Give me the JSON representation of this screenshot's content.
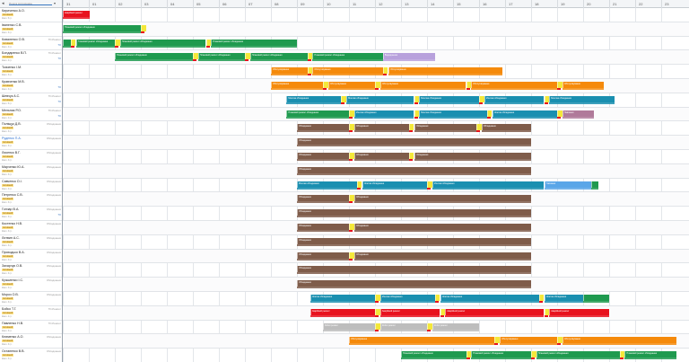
{
  "header": {
    "collapse_icon": "chevron-left-icon",
    "search_placeholder": "Пошук сотрудника",
    "dates": [
      "31",
      "01",
      "02",
      "03",
      "04",
      "05",
      "06",
      "07",
      "08",
      "09",
      "10",
      "11",
      "12",
      "13",
      "14",
      "15",
      "16",
      "17",
      "18",
      "19",
      "20",
      "21",
      "22",
      "23"
    ]
  },
  "colors": {
    "green": "#1f9a4f",
    "teal": "#1a8fb0",
    "orange": "#f58a0b",
    "brown": "#7f5c4a",
    "red": "#e8121e",
    "yellow": "#f4e83a",
    "lavender": "#b8a1dc",
    "grey": "#bdbdbd",
    "mauve": "#b07a9a",
    "blue": "#5aa6e8"
  },
  "rows": [
    {
      "name": "Кириченко А.О.",
      "status": "Активний",
      "tag": "",
      "sub": "Квал. 5 гр.",
      "link": false,
      "pin": ""
    },
    {
      "name": "Іваненко С.В.",
      "status": "Активний",
      "tag": "",
      "sub": "Квал. 3 гр.",
      "link": false,
      "pin": ""
    },
    {
      "name": "Коваленко О.В.",
      "status": "Активний",
      "tag": "ТО-Ремонт",
      "sub": "Квал. 4 гр.",
      "link": false,
      "pin": "ТО"
    },
    {
      "name": "Бондаренко В.П.",
      "status": "Активний",
      "tag": "ТО-Ремонт",
      "sub": "Квал. 4 гр.",
      "link": false,
      "pin": "ТО"
    },
    {
      "name": "Ткаченко І.М.",
      "status": "Активний",
      "tag": "",
      "sub": "Квал. 3 гр.",
      "link": false,
      "pin": ""
    },
    {
      "name": "Кравченко М.В.",
      "status": "Активний",
      "tag": "",
      "sub": "Квал. 3 гр.",
      "link": false,
      "pin": "ТО"
    },
    {
      "name": "Шевчук А.С.",
      "status": "Активний",
      "tag": "ТО-Ремонт",
      "sub": "Квал. 5 гр.",
      "link": false,
      "pin": "ТО"
    },
    {
      "name": "Мельник Р.О.",
      "status": "Активний",
      "tag": "ТО-Ремонт",
      "sub": "Квал. 4 гр.",
      "link": false,
      "pin": "ТО"
    },
    {
      "name": "Поліщук Д.В.",
      "status": "Активний",
      "tag": "Обладнання",
      "sub": "Квал. 3 гр.",
      "link": false,
      "pin": ""
    },
    {
      "name": "Руденко П.А.",
      "status": "Активний",
      "tag": "Обладнання",
      "sub": "Квал. 3 гр.",
      "link": true,
      "pin": ""
    },
    {
      "name": "Лисенко В.Г.",
      "status": "Активний",
      "tag": "Обладнання",
      "sub": "Квал. 3 гр.",
      "link": false,
      "pin": ""
    },
    {
      "name": "Марченко Ю.А.",
      "status": "Активний",
      "tag": "Обладнання",
      "sub": "Квал. 3 гр.",
      "link": false,
      "pin": ""
    },
    {
      "name": "Савченко О.І.",
      "status": "Активний",
      "tag": "Обладнання",
      "sub": "Квал. 4 гр.",
      "link": false,
      "pin": ""
    },
    {
      "name": "Петренко С.В.",
      "status": "Активний",
      "tag": "Обладнання",
      "sub": "Квал. 3 гр.",
      "link": false,
      "pin": ""
    },
    {
      "name": "Гончар В.А.",
      "status": "Активний",
      "tag": "Обладнання",
      "sub": "Квал. 3 гр.",
      "link": false,
      "pin": "ТО"
    },
    {
      "name": "Костенко Н.В.",
      "status": "Активний",
      "tag": "Обладнання",
      "sub": "Квал. 3 гр.",
      "link": false,
      "pin": ""
    },
    {
      "name": "Литвин А.С.",
      "status": "Активний",
      "tag": "Обладнання",
      "sub": "Квал. 3 гр.",
      "link": false,
      "pin": ""
    },
    {
      "name": "Приходько В.А.",
      "status": "Активний",
      "tag": "Обладнання",
      "sub": "Квал. 3 гр.",
      "link": false,
      "pin": ""
    },
    {
      "name": "Захарчук О.В.",
      "status": "Активний",
      "tag": "Обладнання",
      "sub": "Квал. 3 гр.",
      "link": false,
      "pin": ""
    },
    {
      "name": "Кузьменко І.С.",
      "status": "Активний",
      "tag": "Обладнання",
      "sub": "Квал. 3 гр.",
      "link": false,
      "pin": ""
    },
    {
      "name": "Мороз О.В.",
      "status": "Активний",
      "tag": "Обладнання",
      "sub": "Квал. 3 гр.",
      "link": false,
      "pin": ""
    },
    {
      "name": "Бойко Т.Г.",
      "status": "Активний",
      "tag": "ТО-Ремонт",
      "sub": "Квал. 4 гр.",
      "link": false,
      "pin": ""
    },
    {
      "name": "Павленко Н.В.",
      "status": "Активний",
      "tag": "ТО-Ремонт",
      "sub": "Квал. 3 гр.",
      "link": false,
      "pin": ""
    },
    {
      "name": "Клименко А.О.",
      "status": "Активний",
      "tag": "Обладнання",
      "sub": "Квал. 3 гр.",
      "link": false,
      "pin": ""
    },
    {
      "name": "Остапенко В.В.",
      "status": "Активний",
      "tag": "Обладнання",
      "sub": "Квал. 3 гр.",
      "link": false,
      "pin": ""
    }
  ],
  "tasks": [
    {
      "row": 0,
      "from": 0.0,
      "to": 1.05,
      "color": "red",
      "label": "Аварійний ремонт"
    },
    {
      "row": 1,
      "from": 0.0,
      "to": 3.0,
      "color": "green",
      "label": "Плановий ремонт обладнання"
    },
    {
      "row": 1,
      "from": 3.0,
      "to": 3.2,
      "color": "yellow",
      "label": ""
    },
    {
      "row": 2,
      "from": 0.0,
      "to": 0.3,
      "color": "green",
      "label": ""
    },
    {
      "row": 2,
      "from": 0.3,
      "to": 0.5,
      "color": "yellow",
      "label": ""
    },
    {
      "row": 2,
      "from": 0.5,
      "to": 2.0,
      "color": "green",
      "label": "Плановий ремонт обладнання"
    },
    {
      "row": 2,
      "from": 2.0,
      "to": 2.2,
      "color": "yellow",
      "label": ""
    },
    {
      "row": 2,
      "from": 2.2,
      "to": 5.5,
      "color": "green",
      "label": "Плановий ремонт обладнання"
    },
    {
      "row": 2,
      "from": 5.5,
      "to": 5.7,
      "color": "yellow",
      "label": ""
    },
    {
      "row": 2,
      "from": 5.7,
      "to": 9.0,
      "color": "green",
      "label": "Плановий ремонт обладнання"
    },
    {
      "row": 3,
      "from": 2.0,
      "to": 5.0,
      "color": "green",
      "label": "Плановий ремонт обладнання"
    },
    {
      "row": 3,
      "from": 5.0,
      "to": 5.2,
      "color": "yellow",
      "label": ""
    },
    {
      "row": 3,
      "from": 5.2,
      "to": 7.0,
      "color": "green",
      "label": "Плановий ремонт обладнання"
    },
    {
      "row": 3,
      "from": 7.0,
      "to": 7.2,
      "color": "yellow",
      "label": ""
    },
    {
      "row": 3,
      "from": 7.2,
      "to": 9.4,
      "color": "green",
      "label": "Плановий ремонт обладнання"
    },
    {
      "row": 3,
      "from": 9.4,
      "to": 9.6,
      "color": "yellow",
      "label": ""
    },
    {
      "row": 3,
      "from": 9.6,
      "to": 12.3,
      "color": "green",
      "label": "Плановий ремонт обладнання"
    },
    {
      "row": 3,
      "from": 12.3,
      "to": 14.3,
      "color": "lavender",
      "label": "Відрядження"
    },
    {
      "row": 4,
      "from": 8.0,
      "to": 9.4,
      "color": "orange",
      "label": "Обслуговування"
    },
    {
      "row": 4,
      "from": 9.4,
      "to": 9.6,
      "color": "yellow",
      "label": ""
    },
    {
      "row": 4,
      "from": 9.6,
      "to": 12.3,
      "color": "orange",
      "label": "Обслуговування"
    },
    {
      "row": 4,
      "from": 12.3,
      "to": 12.5,
      "color": "yellow",
      "label": ""
    },
    {
      "row": 4,
      "from": 12.5,
      "to": 16.9,
      "color": "orange",
      "label": "Обслуговування"
    },
    {
      "row": 5,
      "from": 8.0,
      "to": 10.0,
      "color": "orange",
      "label": "Обслуговування"
    },
    {
      "row": 5,
      "from": 10.0,
      "to": 10.2,
      "color": "yellow",
      "label": ""
    },
    {
      "row": 5,
      "from": 10.2,
      "to": 12.0,
      "color": "orange",
      "label": "Обслуговування"
    },
    {
      "row": 5,
      "from": 12.0,
      "to": 12.2,
      "color": "yellow",
      "label": ""
    },
    {
      "row": 5,
      "from": 12.2,
      "to": 15.5,
      "color": "orange",
      "label": "Обслуговування"
    },
    {
      "row": 5,
      "from": 15.5,
      "to": 15.7,
      "color": "yellow",
      "label": ""
    },
    {
      "row": 5,
      "from": 15.7,
      "to": 19.0,
      "color": "orange",
      "label": "Обслуговування"
    },
    {
      "row": 5,
      "from": 19.0,
      "to": 19.2,
      "color": "yellow",
      "label": ""
    },
    {
      "row": 5,
      "from": 19.2,
      "to": 20.8,
      "color": "orange",
      "label": "Обслуговування"
    },
    {
      "row": 6,
      "from": 8.6,
      "to": 10.7,
      "color": "teal",
      "label": "Монтаж обладнання"
    },
    {
      "row": 6,
      "from": 10.7,
      "to": 10.9,
      "color": "yellow",
      "label": ""
    },
    {
      "row": 6,
      "from": 10.9,
      "to": 13.5,
      "color": "teal",
      "label": "Монтаж обладнання"
    },
    {
      "row": 6,
      "from": 13.5,
      "to": 13.7,
      "color": "yellow",
      "label": ""
    },
    {
      "row": 6,
      "from": 13.7,
      "to": 16.0,
      "color": "teal",
      "label": "Монтаж обладнання"
    },
    {
      "row": 6,
      "from": 16.0,
      "to": 16.2,
      "color": "yellow",
      "label": ""
    },
    {
      "row": 6,
      "from": 16.2,
      "to": 18.5,
      "color": "teal",
      "label": "Монтаж обладнання"
    },
    {
      "row": 6,
      "from": 18.5,
      "to": 18.7,
      "color": "yellow",
      "label": ""
    },
    {
      "row": 6,
      "from": 18.7,
      "to": 21.2,
      "color": "teal",
      "label": "Монтаж обладнання"
    },
    {
      "row": 7,
      "from": 8.6,
      "to": 11.0,
      "color": "green",
      "label": "Плановий ремонт обладнання"
    },
    {
      "row": 7,
      "from": 11.0,
      "to": 11.2,
      "color": "yellow",
      "label": ""
    },
    {
      "row": 7,
      "from": 11.2,
      "to": 13.5,
      "color": "teal",
      "label": "Монтаж обладнання"
    },
    {
      "row": 7,
      "from": 13.5,
      "to": 13.7,
      "color": "yellow",
      "label": ""
    },
    {
      "row": 7,
      "from": 13.7,
      "to": 16.3,
      "color": "teal",
      "label": "Монтаж обладнання"
    },
    {
      "row": 7,
      "from": 16.3,
      "to": 16.5,
      "color": "yellow",
      "label": ""
    },
    {
      "row": 7,
      "from": 16.5,
      "to": 19.0,
      "color": "teal",
      "label": "Монтаж обладнання"
    },
    {
      "row": 7,
      "from": 19.0,
      "to": 19.2,
      "color": "yellow",
      "label": ""
    },
    {
      "row": 7,
      "from": 19.2,
      "to": 20.4,
      "color": "mauve",
      "label": "Навчання"
    },
    {
      "row": 8,
      "from": 9.0,
      "to": 11.0,
      "color": "brown",
      "label": "Обладнання"
    },
    {
      "row": 8,
      "from": 11.0,
      "to": 11.2,
      "color": "yellow",
      "label": ""
    },
    {
      "row": 8,
      "from": 11.2,
      "to": 13.3,
      "color": "brown",
      "label": "Обладнання"
    },
    {
      "row": 8,
      "from": 13.3,
      "to": 13.5,
      "color": "yellow",
      "label": ""
    },
    {
      "row": 8,
      "from": 13.5,
      "to": 15.9,
      "color": "brown",
      "label": "Обладнання"
    },
    {
      "row": 8,
      "from": 15.9,
      "to": 16.1,
      "color": "yellow",
      "label": ""
    },
    {
      "row": 8,
      "from": 16.1,
      "to": 18.0,
      "color": "brown",
      "label": "Обладнання"
    },
    {
      "row": 9,
      "from": 9.0,
      "to": 18.0,
      "color": "brown",
      "label": "Обладнання"
    },
    {
      "row": 10,
      "from": 9.0,
      "to": 11.0,
      "color": "brown",
      "label": "Обладнання"
    },
    {
      "row": 10,
      "from": 11.0,
      "to": 11.2,
      "color": "yellow",
      "label": ""
    },
    {
      "row": 10,
      "from": 11.2,
      "to": 13.3,
      "color": "brown",
      "label": "Обладнання"
    },
    {
      "row": 10,
      "from": 13.3,
      "to": 13.5,
      "color": "yellow",
      "label": ""
    },
    {
      "row": 10,
      "from": 13.5,
      "to": 18.0,
      "color": "brown",
      "label": "Обладнання"
    },
    {
      "row": 11,
      "from": 9.0,
      "to": 18.0,
      "color": "brown",
      "label": "Обладнання"
    },
    {
      "row": 12,
      "from": 9.0,
      "to": 11.3,
      "color": "teal",
      "label": "Монтаж обладнання"
    },
    {
      "row": 12,
      "from": 11.3,
      "to": 11.5,
      "color": "yellow",
      "label": ""
    },
    {
      "row": 12,
      "from": 11.5,
      "to": 14.0,
      "color": "teal",
      "label": "Монтаж обладнання"
    },
    {
      "row": 12,
      "from": 14.0,
      "to": 14.2,
      "color": "yellow",
      "label": ""
    },
    {
      "row": 12,
      "from": 14.2,
      "to": 18.5,
      "color": "teal",
      "label": "Монтаж обладнання"
    },
    {
      "row": 12,
      "from": 18.5,
      "to": 20.3,
      "color": "blue",
      "label": "Навчання"
    },
    {
      "row": 12,
      "from": 20.3,
      "to": 20.6,
      "color": "green",
      "label": ""
    },
    {
      "row": 13,
      "from": 9.0,
      "to": 11.0,
      "color": "brown",
      "label": "Обладнання"
    },
    {
      "row": 13,
      "from": 11.0,
      "to": 11.2,
      "color": "yellow",
      "label": ""
    },
    {
      "row": 13,
      "from": 11.2,
      "to": 18.0,
      "color": "brown",
      "label": "Обладнання"
    },
    {
      "row": 14,
      "from": 9.0,
      "to": 18.0,
      "color": "brown",
      "label": "Обладнання"
    },
    {
      "row": 15,
      "from": 9.0,
      "to": 11.0,
      "color": "brown",
      "label": "Обладнання"
    },
    {
      "row": 15,
      "from": 11.0,
      "to": 11.2,
      "color": "yellow",
      "label": ""
    },
    {
      "row": 15,
      "from": 11.2,
      "to": 18.0,
      "color": "brown",
      "label": "Обладнання"
    },
    {
      "row": 16,
      "from": 9.0,
      "to": 18.0,
      "color": "brown",
      "label": "Обладнання"
    },
    {
      "row": 17,
      "from": 9.0,
      "to": 11.0,
      "color": "brown",
      "label": "Обладнання"
    },
    {
      "row": 17,
      "from": 11.0,
      "to": 11.2,
      "color": "yellow",
      "label": ""
    },
    {
      "row": 17,
      "from": 11.2,
      "to": 18.0,
      "color": "brown",
      "label": "Обладнання"
    },
    {
      "row": 18,
      "from": 9.0,
      "to": 18.0,
      "color": "brown",
      "label": "Обладнання"
    },
    {
      "row": 19,
      "from": 9.0,
      "to": 18.0,
      "color": "brown",
      "label": "Обладнання"
    },
    {
      "row": 20,
      "from": 9.5,
      "to": 12.0,
      "color": "teal",
      "label": "Монтаж обладнання"
    },
    {
      "row": 20,
      "from": 12.0,
      "to": 12.2,
      "color": "yellow",
      "label": ""
    },
    {
      "row": 20,
      "from": 12.2,
      "to": 14.3,
      "color": "teal",
      "label": "Монтаж обладнання"
    },
    {
      "row": 20,
      "from": 14.3,
      "to": 14.5,
      "color": "yellow",
      "label": ""
    },
    {
      "row": 20,
      "from": 14.5,
      "to": 18.3,
      "color": "teal",
      "label": "Монтаж обладнання"
    },
    {
      "row": 20,
      "from": 18.3,
      "to": 18.5,
      "color": "yellow",
      "label": ""
    },
    {
      "row": 20,
      "from": 18.5,
      "to": 20.0,
      "color": "teal",
      "label": "Монтаж обладнання"
    },
    {
      "row": 20,
      "from": 20.0,
      "to": 21.0,
      "color": "green",
      "label": ""
    },
    {
      "row": 21,
      "from": 9.5,
      "to": 12.0,
      "color": "red",
      "label": "Аварійний ремонт"
    },
    {
      "row": 21,
      "from": 12.0,
      "to": 12.2,
      "color": "yellow",
      "label": ""
    },
    {
      "row": 21,
      "from": 12.2,
      "to": 14.5,
      "color": "red",
      "label": "Аварійний ремонт"
    },
    {
      "row": 21,
      "from": 14.5,
      "to": 14.7,
      "color": "yellow",
      "label": ""
    },
    {
      "row": 21,
      "from": 14.7,
      "to": 18.5,
      "color": "red",
      "label": "Аварійний ремонт"
    },
    {
      "row": 21,
      "from": 18.5,
      "to": 18.7,
      "color": "yellow",
      "label": ""
    },
    {
      "row": 21,
      "from": 18.7,
      "to": 21.0,
      "color": "red",
      "label": "Аварійний ремонт"
    },
    {
      "row": 22,
      "from": 10.0,
      "to": 12.0,
      "color": "grey",
      "label": "Robot ремонт"
    },
    {
      "row": 22,
      "from": 12.0,
      "to": 12.2,
      "color": "yellow",
      "label": ""
    },
    {
      "row": 22,
      "from": 12.2,
      "to": 14.0,
      "color": "grey",
      "label": "Robot ремонт"
    },
    {
      "row": 22,
      "from": 14.0,
      "to": 14.2,
      "color": "yellow",
      "label": ""
    },
    {
      "row": 22,
      "from": 14.2,
      "to": 16.0,
      "color": "grey",
      "label": "Robot ремонт"
    },
    {
      "row": 23,
      "from": 11.0,
      "to": 16.6,
      "color": "orange",
      "label": "Обслуговування"
    },
    {
      "row": 23,
      "from": 16.6,
      "to": 16.8,
      "color": "yellow",
      "label": ""
    },
    {
      "row": 23,
      "from": 16.8,
      "to": 19.0,
      "color": "orange",
      "label": "Обслуговування"
    },
    {
      "row": 23,
      "from": 19.0,
      "to": 19.2,
      "color": "yellow",
      "label": ""
    },
    {
      "row": 23,
      "from": 19.2,
      "to": 23.6,
      "color": "orange",
      "label": "Обслуговування"
    },
    {
      "row": 24,
      "from": 13.0,
      "to": 15.5,
      "color": "green",
      "label": "Плановий ремонт обладнання"
    },
    {
      "row": 24,
      "from": 15.5,
      "to": 15.7,
      "color": "yellow",
      "label": ""
    },
    {
      "row": 24,
      "from": 15.7,
      "to": 18.0,
      "color": "green",
      "label": "Плановий ремонт обладнання"
    },
    {
      "row": 24,
      "from": 18.0,
      "to": 18.2,
      "color": "yellow",
      "label": ""
    },
    {
      "row": 24,
      "from": 18.2,
      "to": 21.4,
      "color": "green",
      "label": "Плановий ремонт обладнання"
    },
    {
      "row": 24,
      "from": 21.4,
      "to": 21.6,
      "color": "yellow",
      "label": ""
    },
    {
      "row": 24,
      "from": 21.6,
      "to": 23.6,
      "color": "green",
      "label": "Плановий ремонт обладнання"
    }
  ]
}
